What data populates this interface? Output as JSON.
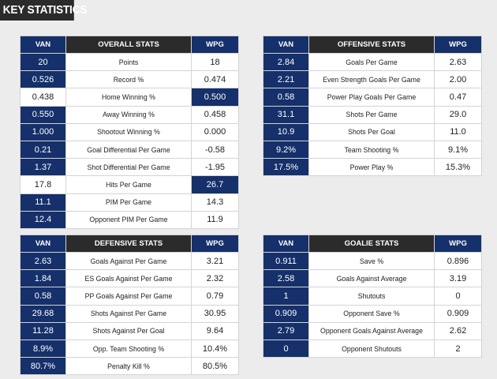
{
  "page": {
    "title": "KEY STATISTICS"
  },
  "colors": {
    "navy": "#15306a",
    "dark_header": "#2b2b2b",
    "background": "#ececec"
  },
  "tables": {
    "overall": {
      "header": {
        "left": "VAN",
        "middle": "OVERALL STATS",
        "right": "WPG"
      },
      "rows": [
        {
          "van": "20",
          "label": "Points",
          "wpg": "18",
          "highlight": "van"
        },
        {
          "van": "0.526",
          "label": "Record %",
          "wpg": "0.474",
          "highlight": "van"
        },
        {
          "van": "0.438",
          "label": "Home Winning %",
          "wpg": "0.500",
          "highlight": "wpg"
        },
        {
          "van": "0.550",
          "label": "Away Winning %",
          "wpg": "0.458",
          "highlight": "van"
        },
        {
          "van": "1.000",
          "label": "Shootout Winning %",
          "wpg": "0.000",
          "highlight": "van"
        },
        {
          "van": "0.21",
          "label": "Goal Differential Per Game",
          "wpg": "-0.58",
          "highlight": "van"
        },
        {
          "van": "1.37",
          "label": "Shot Differential Per Game",
          "wpg": "-1.95",
          "highlight": "van"
        },
        {
          "van": "17.8",
          "label": "Hits Per Game",
          "wpg": "26.7",
          "highlight": "wpg"
        },
        {
          "van": "11.1",
          "label": "PIM Per Game",
          "wpg": "14.3",
          "highlight": "van"
        },
        {
          "van": "12.4",
          "label": "Opponent PIM Per Game",
          "wpg": "11.9",
          "highlight": "van"
        }
      ]
    },
    "offensive": {
      "header": {
        "left": "VAN",
        "middle": "OFFENSIVE STATS",
        "right": "WPG"
      },
      "rows": [
        {
          "van": "2.84",
          "label": "Goals Per Game",
          "wpg": "2.63",
          "highlight": "van"
        },
        {
          "van": "2.21",
          "label": "Even Strength Goals Per Game",
          "wpg": "2.00",
          "highlight": "van"
        },
        {
          "van": "0.58",
          "label": "Power Play Goals Per Game",
          "wpg": "0.47",
          "highlight": "van"
        },
        {
          "van": "31.1",
          "label": "Shots Per Game",
          "wpg": "29.0",
          "highlight": "van"
        },
        {
          "van": "10.9",
          "label": "Shots Per Goal",
          "wpg": "11.0",
          "highlight": "van"
        },
        {
          "van": "9.2%",
          "label": "Team Shooting %",
          "wpg": "9.1%",
          "highlight": "van"
        },
        {
          "van": "17.5%",
          "label": "Power Play %",
          "wpg": "15.3%",
          "highlight": "van"
        }
      ]
    },
    "defensive": {
      "header": {
        "left": "VAN",
        "middle": "DEFENSIVE STATS",
        "right": "WPG"
      },
      "rows": [
        {
          "van": "2.63",
          "label": "Goals Against Per Game",
          "wpg": "3.21",
          "highlight": "van"
        },
        {
          "van": "1.84",
          "label": "ES Goals Against Per Game",
          "wpg": "2.32",
          "highlight": "van"
        },
        {
          "van": "0.58",
          "label": "PP Goals Against Per Game",
          "wpg": "0.79",
          "highlight": "van"
        },
        {
          "van": "29.68",
          "label": "Shots Against Per Game",
          "wpg": "30.95",
          "highlight": "van"
        },
        {
          "van": "11.28",
          "label": "Shots Against Per Goal",
          "wpg": "9.64",
          "highlight": "van"
        },
        {
          "van": "8.9%",
          "label": "Opp. Team Shooting %",
          "wpg": "10.4%",
          "highlight": "van"
        },
        {
          "van": "80.7%",
          "label": "Penalty Kill %",
          "wpg": "80.5%",
          "highlight": "van"
        }
      ]
    },
    "goalie": {
      "header": {
        "left": "VAN",
        "middle": "GOALIE STATS",
        "right": "WPG"
      },
      "rows": [
        {
          "van": "0.911",
          "label": "Save %",
          "wpg": "0.896",
          "highlight": "van"
        },
        {
          "van": "2.58",
          "label": "Goals Against Average",
          "wpg": "3.19",
          "highlight": "van"
        },
        {
          "van": "1",
          "label": "Shutouts",
          "wpg": "0",
          "highlight": "van"
        },
        {
          "van": "0.909",
          "label": "Opponent Save %",
          "wpg": "0.909",
          "highlight": "van"
        },
        {
          "van": "2.79",
          "label": "Opponent Goals Against Average",
          "wpg": "2.62",
          "highlight": "van"
        },
        {
          "van": "0",
          "label": "Opponent Shutouts",
          "wpg": "2",
          "highlight": "van"
        }
      ]
    }
  }
}
